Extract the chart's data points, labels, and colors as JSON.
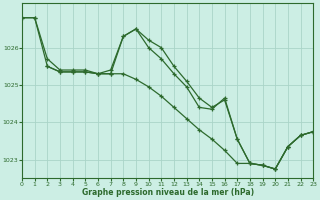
{
  "title": "Graphe pression niveau de la mer (hPa)",
  "background_color": "#cceee4",
  "grid_color": "#aad4c8",
  "line_color": "#2d6a2d",
  "marker_color": "#2d6a2d",
  "xlim": [
    0,
    23
  ],
  "ylim": [
    1022.5,
    1027.2
  ],
  "yticks": [
    1023,
    1024,
    1025,
    1026
  ],
  "xticks": [
    0,
    1,
    2,
    3,
    4,
    5,
    6,
    7,
    8,
    9,
    10,
    11,
    12,
    13,
    14,
    15,
    16,
    17,
    18,
    19,
    20,
    21,
    22,
    23
  ],
  "series": [
    {
      "x": [
        0,
        1,
        2,
        3,
        4,
        5,
        6,
        7,
        8,
        9,
        10,
        11,
        12,
        13,
        14,
        15,
        16,
        17,
        18,
        19,
        20,
        21,
        22,
        23
      ],
      "y": [
        1026.8,
        1026.8,
        1025.7,
        1025.4,
        1025.4,
        1025.4,
        1025.3,
        1025.4,
        1026.3,
        1026.5,
        1026.2,
        1026.0,
        1025.5,
        1025.1,
        1024.65,
        1024.4,
        1024.6,
        1023.55,
        1022.9,
        1022.85,
        1022.75,
        1023.35,
        1023.65,
        1023.75
      ]
    },
    {
      "x": [
        0,
        1,
        2,
        3,
        4,
        5,
        6,
        7,
        8,
        9,
        10,
        11,
        12,
        13,
        14,
        15,
        16,
        17,
        18,
        19,
        20,
        21,
        22,
        23
      ],
      "y": [
        1026.8,
        1026.8,
        1025.5,
        1025.35,
        1025.35,
        1025.35,
        1025.3,
        1025.3,
        1025.3,
        1025.15,
        1024.95,
        1024.7,
        1024.4,
        1024.1,
        1023.8,
        1023.55,
        1023.25,
        1022.9,
        1022.9,
        1022.85,
        1022.75,
        1023.35,
        1023.65,
        1023.75
      ]
    },
    {
      "x": [
        2,
        3,
        4,
        5,
        6,
        7,
        8,
        9,
        10,
        11,
        12,
        13,
        14,
        15,
        16,
        17,
        18,
        19,
        20,
        21,
        22,
        23
      ],
      "y": [
        1025.5,
        1025.35,
        1025.35,
        1025.35,
        1025.3,
        1025.3,
        1026.3,
        1026.5,
        1026.0,
        1025.7,
        1025.3,
        1024.95,
        1024.4,
        1024.35,
        1024.65,
        1023.55,
        1022.9,
        1022.85,
        1022.75,
        1023.35,
        1023.65,
        1023.75
      ]
    }
  ]
}
